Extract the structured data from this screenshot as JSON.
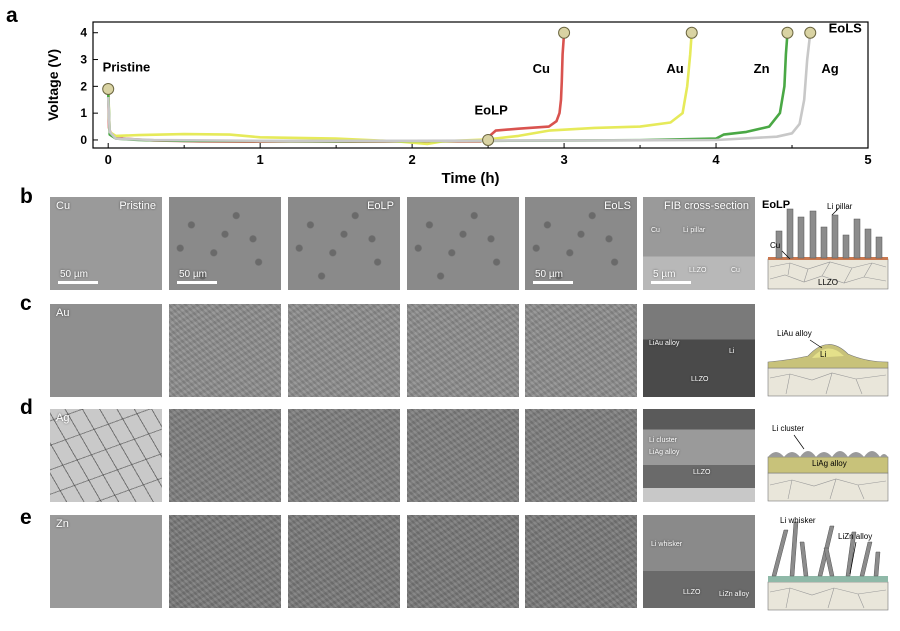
{
  "panels": {
    "a": "a",
    "b": "b",
    "c": "c",
    "d": "d",
    "e": "e"
  },
  "chart_data": {
    "type": "line",
    "xlabel": "Time (h)",
    "ylabel": "Voltage (V)",
    "xlim": [
      -0.1,
      5
    ],
    "ylim": [
      -0.3,
      4.4
    ],
    "xticks": [
      "0",
      "1",
      "2",
      "3",
      "4",
      "5"
    ],
    "yticks": [
      "0",
      "1",
      "2",
      "3",
      "4"
    ],
    "grid": false,
    "series": [
      {
        "name": "Cu",
        "color": "#d9534f",
        "x": [
          0,
          0.005,
          0.02,
          0.1,
          0.3,
          0.6,
          0.9,
          1.2,
          1.6,
          2.0,
          2.45,
          2.5,
          2.55,
          2.7,
          2.9,
          2.95,
          2.97,
          2.98,
          2.985,
          2.99,
          3.0
        ],
        "y": [
          1.9,
          0.45,
          0.18,
          0.05,
          -0.02,
          -0.05,
          -0.06,
          -0.05,
          -0.06,
          -0.05,
          -0.05,
          0.1,
          0.35,
          0.42,
          0.5,
          0.7,
          1.0,
          1.5,
          2.2,
          3.2,
          4.0
        ]
      },
      {
        "name": "Au",
        "color": "#e6ea5a",
        "x": [
          0,
          0.01,
          0.05,
          0.2,
          0.5,
          0.8,
          1.0,
          1.5,
          1.9,
          2.1,
          2.2,
          2.5,
          2.7,
          2.9,
          3.2,
          3.5,
          3.7,
          3.78,
          3.81,
          3.83,
          3.84
        ],
        "y": [
          1.9,
          0.3,
          0.15,
          0.18,
          0.22,
          0.2,
          0.1,
          0.05,
          -0.05,
          -0.15,
          -0.05,
          0.02,
          0.15,
          0.35,
          0.45,
          0.5,
          0.65,
          1.0,
          2.0,
          3.2,
          4.0
        ]
      },
      {
        "name": "Zn",
        "color": "#4aa845",
        "x": [
          0,
          0.01,
          0.05,
          0.2,
          0.5,
          1.0,
          1.5,
          2.0,
          2.5,
          3.0,
          3.5,
          4.0,
          4.05,
          4.2,
          4.35,
          4.42,
          4.45,
          4.46,
          4.47
        ],
        "y": [
          1.8,
          0.2,
          0.05,
          0.0,
          -0.03,
          -0.04,
          -0.05,
          -0.04,
          -0.03,
          -0.02,
          -0.01,
          0.05,
          0.2,
          0.3,
          0.5,
          1.0,
          2.0,
          3.2,
          4.0
        ]
      },
      {
        "name": "Ag",
        "color": "#c8c8c8",
        "x": [
          0,
          0.01,
          0.05,
          0.3,
          1.0,
          2.0,
          3.0,
          4.0,
          4.4,
          4.5,
          4.55,
          4.58,
          4.6,
          4.62
        ],
        "y": [
          1.6,
          0.3,
          0.05,
          0.0,
          -0.03,
          -0.03,
          -0.02,
          0.0,
          0.12,
          0.25,
          0.6,
          1.5,
          3.0,
          4.0
        ]
      }
    ],
    "markers": [
      {
        "x": 0,
        "y": 1.9
      },
      {
        "x": 2.5,
        "y": 0.0
      },
      {
        "x": 3.0,
        "y": 4.0
      },
      {
        "x": 3.84,
        "y": 4.0
      },
      {
        "x": 4.47,
        "y": 4.0
      },
      {
        "x": 4.62,
        "y": 4.0
      }
    ],
    "annotations": [
      {
        "text": "Pristine",
        "x": 0.12,
        "y": 2.55
      },
      {
        "text": "EoLP",
        "x": 2.52,
        "y": 0.95
      },
      {
        "text": "Cu",
        "x": 2.85,
        "y": 2.5
      },
      {
        "text": "Au",
        "x": 3.73,
        "y": 2.5
      },
      {
        "text": "Zn",
        "x": 4.3,
        "y": 2.5
      },
      {
        "text": "Ag",
        "x": 4.75,
        "y": 2.5
      },
      {
        "text": "EoLS",
        "x": 4.85,
        "y": 4.0
      }
    ]
  },
  "rows": [
    {
      "label": "Cu",
      "tone": "#8a8a8a",
      "tiles": [
        {
          "tl": "Cu",
          "tr": "Pristine",
          "scale": "50 µm"
        },
        {
          "tl": "",
          "tr": "",
          "scale": "50 µm"
        },
        {
          "tl": "",
          "tr": "EoLP",
          "scale": ""
        },
        {
          "tl": "",
          "tr": "",
          "scale": ""
        },
        {
          "tl": "",
          "tr": "EoLS",
          "scale": "50 µm"
        },
        {
          "tl": "",
          "tr": "FIB cross-section",
          "scale": "5 µm",
          "extra": [
            "Cu",
            "Li pillar",
            "LLZO",
            "Cu"
          ]
        }
      ]
    },
    {
      "label": "Au",
      "tone": "#8d8d8d",
      "tiles": [
        {
          "tl": "Au",
          "tr": "",
          "scale": ""
        },
        {
          "tl": "",
          "tr": "",
          "scale": ""
        },
        {
          "tl": "",
          "tr": "",
          "scale": ""
        },
        {
          "tl": "",
          "tr": "",
          "scale": ""
        },
        {
          "tl": "",
          "tr": "",
          "scale": ""
        },
        {
          "tl": "",
          "tr": "",
          "scale": "",
          "extra": [
            "LiAu alloy",
            "Li",
            "LLZO"
          ]
        }
      ]
    },
    {
      "label": "Ag",
      "tone": "#b0b0b0",
      "tiles": [
        {
          "tl": "Ag",
          "tr": "",
          "scale": ""
        },
        {
          "tl": "",
          "tr": "",
          "scale": ""
        },
        {
          "tl": "",
          "tr": "",
          "scale": ""
        },
        {
          "tl": "",
          "tr": "",
          "scale": ""
        },
        {
          "tl": "",
          "tr": "",
          "scale": ""
        },
        {
          "tl": "",
          "tr": "",
          "scale": "",
          "extra": [
            "Li cluster",
            "LiAg alloy",
            "LLZO"
          ]
        }
      ]
    },
    {
      "label": "Zn",
      "tone": "#8a8a8a",
      "tiles": [
        {
          "tl": "Zn",
          "tr": "",
          "scale": ""
        },
        {
          "tl": "",
          "tr": "",
          "scale": ""
        },
        {
          "tl": "",
          "tr": "",
          "scale": ""
        },
        {
          "tl": "",
          "tr": "",
          "scale": ""
        },
        {
          "tl": "",
          "tr": "",
          "scale": ""
        },
        {
          "tl": "",
          "tr": "",
          "scale": "",
          "extra": [
            "Li whisker",
            "LLZO",
            "LiZn alloy"
          ]
        }
      ]
    }
  ],
  "schematics": {
    "b": {
      "title": "EoLP",
      "a": "Li pillar",
      "b": "Cu",
      "c": "LLZO"
    },
    "c": {
      "a": "LiAu alloy",
      "b": "Li"
    },
    "d": {
      "a": "Li cluster",
      "b": "LiAg alloy"
    },
    "e": {
      "a": "Li whisker",
      "b": "LiZn alloy"
    }
  }
}
